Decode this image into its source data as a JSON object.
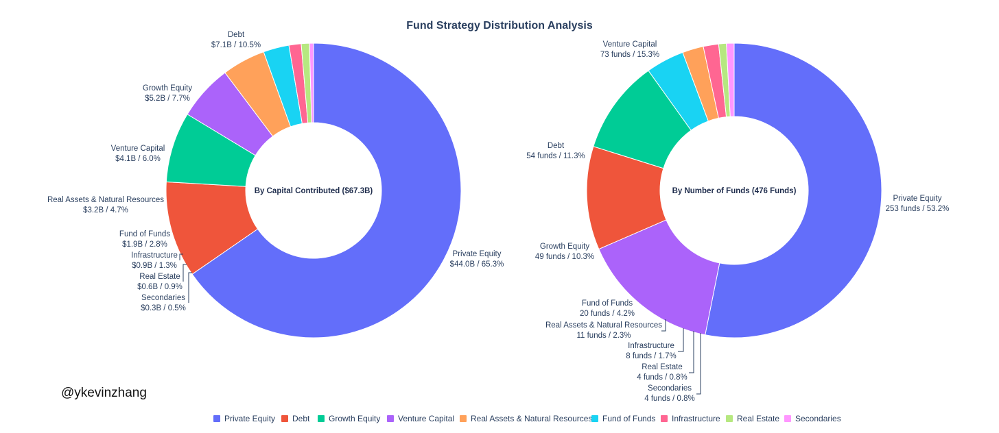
{
  "title": "Fund Strategy Distribution Analysis",
  "watermark": "@ykevinzhang",
  "colors": {
    "Private Equity": "#636efa",
    "Debt": "#ef553b",
    "Growth Equity": "#00cc96",
    "Venture Capital": "#ab63fa",
    "Real Assets & Natural Resources": "#ffa15a",
    "Fund of Funds": "#19d3f3",
    "Infrastructure": "#ff6692",
    "Real Estate": "#b6e880",
    "Secondaries": "#ff97ff"
  },
  "legend": [
    "Private Equity",
    "Debt",
    "Growth Equity",
    "Venture Capital",
    "Real Assets & Natural Resources",
    "Fund of Funds",
    "Infrastructure",
    "Real Estate",
    "Secondaries"
  ],
  "chart_data": [
    {
      "type": "pie",
      "hole": true,
      "center_label": "By Capital Contributed ($67.3B)",
      "categories": [
        "Private Equity",
        "Debt",
        "Growth Equity",
        "Venture Capital",
        "Real Assets & Natural Resources",
        "Fund of Funds",
        "Infrastructure",
        "Real Estate",
        "Secondaries"
      ],
      "values": [
        44.0,
        7.1,
        5.2,
        4.1,
        3.2,
        1.9,
        0.9,
        0.6,
        0.3
      ],
      "percents": [
        65.3,
        10.5,
        7.7,
        6.0,
        4.7,
        2.8,
        1.3,
        0.9,
        0.5
      ],
      "labels": [
        "$44.0B / 65.3%",
        "$7.1B / 10.5%",
        "$5.2B / 7.7%",
        "$4.1B / 6.0%",
        "$3.2B / 4.7%",
        "$1.9B / 2.8%",
        "$0.9B / 1.3%",
        "$0.6B / 0.9%",
        "$0.3B / 0.5%"
      ]
    },
    {
      "type": "pie",
      "hole": true,
      "center_label": "By Number of Funds (476 Funds)",
      "categories": [
        "Private Equity",
        "Venture Capital",
        "Debt",
        "Growth Equity",
        "Fund of Funds",
        "Real Assets & Natural Resources",
        "Infrastructure",
        "Real Estate",
        "Secondaries"
      ],
      "values": [
        253,
        73,
        54,
        49,
        20,
        11,
        8,
        4,
        4
      ],
      "percents": [
        53.2,
        15.3,
        11.3,
        10.3,
        4.2,
        2.3,
        1.7,
        0.8,
        0.8
      ],
      "labels": [
        "253 funds / 53.2%",
        "73 funds / 15.3%",
        "54 funds / 11.3%",
        "49 funds / 10.3%",
        "20 funds / 4.2%",
        "11 funds / 2.3%",
        "8 funds / 1.7%",
        "4 funds / 0.8%",
        "4 funds / 0.8%"
      ]
    }
  ]
}
